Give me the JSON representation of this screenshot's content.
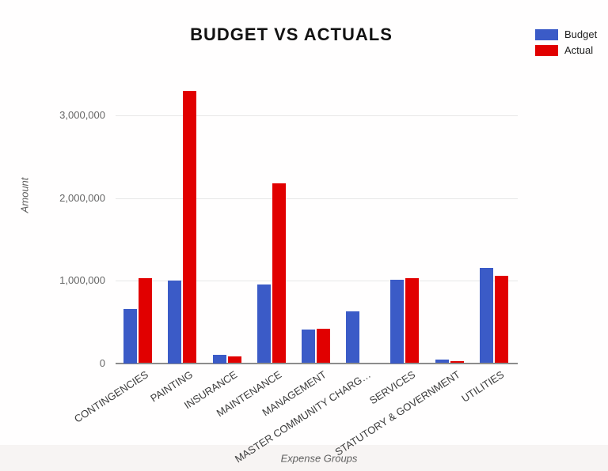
{
  "chart_data": {
    "type": "bar",
    "title": "BUDGET VS ACTUALS",
    "xlabel": "Expense Groups",
    "ylabel": "Amount",
    "categories": [
      "CONTINGENCIES",
      "PAINTING",
      "INSURANCE",
      "MAINTENANCE",
      "MANAGEMENT",
      "MASTER COMMUNITY CHARG…",
      "SERVICES",
      "STATUTORY & GOVERNMENT",
      "UTILITIES"
    ],
    "series": [
      {
        "name": "Budget",
        "color": "#3B5BC7",
        "values": [
          660000,
          1000000,
          100000,
          950000,
          410000,
          630000,
          1010000,
          45000,
          1150000
        ]
      },
      {
        "name": "Actual",
        "color": "#E10000",
        "values": [
          1030000,
          3300000,
          80000,
          2180000,
          420000,
          0,
          1030000,
          20000,
          1060000
        ]
      }
    ],
    "ylim": [
      0,
      3300000
    ],
    "yticks": [
      {
        "value": 0,
        "label": "0"
      },
      {
        "value": 1000000,
        "label": "1,000,000"
      },
      {
        "value": 2000000,
        "label": "2,000,000"
      },
      {
        "value": 3000000,
        "label": "3,000,000"
      }
    ],
    "grid": true,
    "legend_position": "top-right"
  }
}
